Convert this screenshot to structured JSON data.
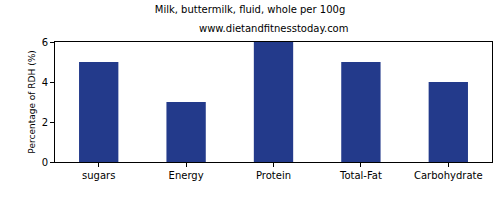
{
  "chart_data": {
    "type": "bar",
    "title": "Milk, buttermilk, fluid, whole per 100g",
    "subtitle": "www.dietandfitnesstoday.com",
    "y_label": "Percentage of RDH (%)",
    "categories": [
      "sugars",
      "Energy",
      "Protein",
      "Total-Fat",
      "Carbohydrate"
    ],
    "values": [
      5,
      3,
      6,
      5,
      4
    ],
    "color": "#233a8b",
    "ylim": [
      0,
      6
    ],
    "yticks": [
      0,
      2,
      4,
      6
    ],
    "grid": false
  }
}
